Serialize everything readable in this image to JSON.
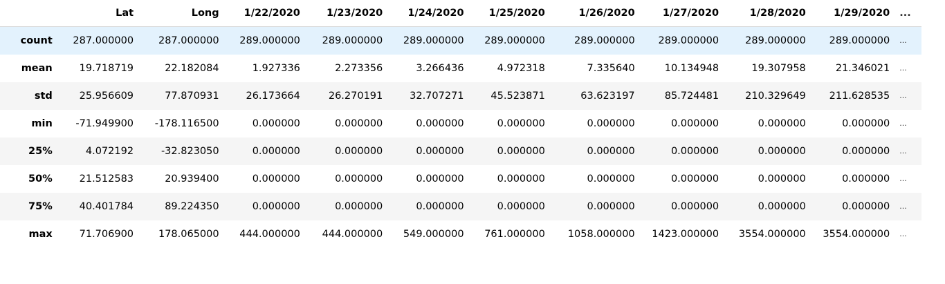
{
  "table": {
    "columns": [
      "Lat",
      "Long",
      "1/22/2020",
      "1/23/2020",
      "1/24/2020",
      "1/25/2020",
      "1/26/2020",
      "1/27/2020",
      "1/28/2020",
      "1/29/2020"
    ],
    "ellipsis": "...",
    "rows": [
      {
        "label": "count",
        "cells": [
          "287.000000",
          "287.000000",
          "289.000000",
          "289.000000",
          "289.000000",
          "289.000000",
          "289.000000",
          "289.000000",
          "289.000000",
          "289.000000"
        ]
      },
      {
        "label": "mean",
        "cells": [
          "19.718719",
          "22.182084",
          "1.927336",
          "2.273356",
          "3.266436",
          "4.972318",
          "7.335640",
          "10.134948",
          "19.307958",
          "21.346021"
        ]
      },
      {
        "label": "std",
        "cells": [
          "25.956609",
          "77.870931",
          "26.173664",
          "26.270191",
          "32.707271",
          "45.523871",
          "63.623197",
          "85.724481",
          "210.329649",
          "211.628535"
        ]
      },
      {
        "label": "min",
        "cells": [
          "-71.949900",
          "-178.116500",
          "0.000000",
          "0.000000",
          "0.000000",
          "0.000000",
          "0.000000",
          "0.000000",
          "0.000000",
          "0.000000"
        ]
      },
      {
        "label": "25%",
        "cells": [
          "4.072192",
          "-32.823050",
          "0.000000",
          "0.000000",
          "0.000000",
          "0.000000",
          "0.000000",
          "0.000000",
          "0.000000",
          "0.000000"
        ]
      },
      {
        "label": "50%",
        "cells": [
          "21.512583",
          "20.939400",
          "0.000000",
          "0.000000",
          "0.000000",
          "0.000000",
          "0.000000",
          "0.000000",
          "0.000000",
          "0.000000"
        ]
      },
      {
        "label": "75%",
        "cells": [
          "40.401784",
          "89.224350",
          "0.000000",
          "0.000000",
          "0.000000",
          "0.000000",
          "0.000000",
          "0.000000",
          "0.000000",
          "0.000000"
        ]
      },
      {
        "label": "max",
        "cells": [
          "71.706900",
          "178.065000",
          "444.000000",
          "444.000000",
          "549.000000",
          "761.000000",
          "1058.000000",
          "1423.000000",
          "3554.000000",
          "3554.000000"
        ]
      }
    ]
  },
  "colors": {
    "hover_row": "#e3f2fd",
    "stripe_row": "#f5f5f5",
    "header_border": "#d8d8d8"
  }
}
